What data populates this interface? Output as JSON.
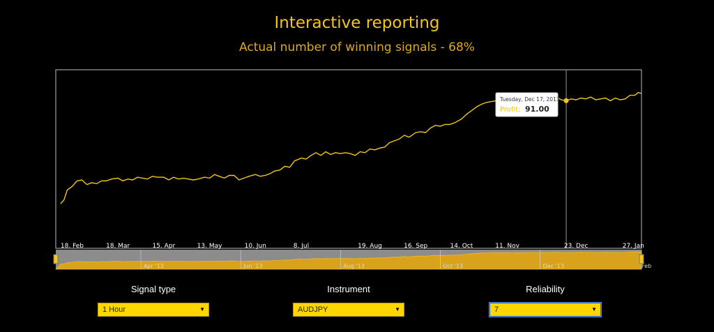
{
  "header": {
    "title": "Interactive reporting",
    "subtitle": "Actual number of winning signals - 68%"
  },
  "chart_data": {
    "type": "line",
    "series": [
      {
        "name": "Profit",
        "points": [
          [
            "2013-02-11",
            34.5
          ],
          [
            "2013-02-13",
            36.5
          ],
          [
            "2013-02-15",
            42
          ],
          [
            "2013-02-18",
            44
          ],
          [
            "2013-02-21",
            47
          ],
          [
            "2013-02-24",
            47.5
          ],
          [
            "2013-02-27",
            45
          ],
          [
            "2013-03-02",
            46
          ],
          [
            "2013-03-05",
            45.5
          ],
          [
            "2013-03-08",
            47
          ],
          [
            "2013-03-11",
            47
          ],
          [
            "2013-03-14",
            48
          ],
          [
            "2013-03-18",
            48.5
          ],
          [
            "2013-03-21",
            47
          ],
          [
            "2013-03-24",
            48
          ],
          [
            "2013-03-27",
            47.5
          ],
          [
            "2013-03-30",
            49
          ],
          [
            "2013-04-02",
            48.5
          ],
          [
            "2013-04-05",
            48
          ],
          [
            "2013-04-08",
            49.5
          ],
          [
            "2013-04-11",
            49
          ],
          [
            "2013-04-15",
            49
          ],
          [
            "2013-04-18",
            47.5
          ],
          [
            "2013-04-21",
            49
          ],
          [
            "2013-04-24",
            48
          ],
          [
            "2013-04-27",
            48.5
          ],
          [
            "2013-04-30",
            48
          ],
          [
            "2013-05-03",
            47.5
          ],
          [
            "2013-05-06",
            48
          ],
          [
            "2013-05-10",
            49
          ],
          [
            "2013-05-13",
            48.5
          ],
          [
            "2013-05-16",
            50.5
          ],
          [
            "2013-05-19",
            49.5
          ],
          [
            "2013-05-22",
            48.5
          ],
          [
            "2013-05-25",
            50
          ],
          [
            "2013-05-28",
            50
          ],
          [
            "2013-05-31",
            47.5
          ],
          [
            "2013-06-03",
            48.5
          ],
          [
            "2013-06-06",
            49.5
          ],
          [
            "2013-06-10",
            50.5
          ],
          [
            "2013-06-13",
            49.5
          ],
          [
            "2013-06-16",
            50
          ],
          [
            "2013-06-19",
            51
          ],
          [
            "2013-06-22",
            52.5
          ],
          [
            "2013-06-25",
            53
          ],
          [
            "2013-06-28",
            55
          ],
          [
            "2013-07-01",
            54.5
          ],
          [
            "2013-07-04",
            58
          ],
          [
            "2013-07-08",
            59.5
          ],
          [
            "2013-07-11",
            59
          ],
          [
            "2013-07-14",
            61
          ],
          [
            "2013-07-17",
            62.5
          ],
          [
            "2013-07-20",
            61
          ],
          [
            "2013-07-23",
            63
          ],
          [
            "2013-07-26",
            61.5
          ],
          [
            "2013-07-29",
            62.5
          ],
          [
            "2013-08-01",
            62
          ],
          [
            "2013-08-04",
            62.5
          ],
          [
            "2013-08-07",
            62
          ],
          [
            "2013-08-10",
            61
          ],
          [
            "2013-08-13",
            63
          ],
          [
            "2013-08-16",
            62.5
          ],
          [
            "2013-08-19",
            64.5
          ],
          [
            "2013-08-22",
            64
          ],
          [
            "2013-08-25",
            65
          ],
          [
            "2013-08-28",
            65.5
          ],
          [
            "2013-08-31",
            68
          ],
          [
            "2013-09-03",
            69
          ],
          [
            "2013-09-06",
            70
          ],
          [
            "2013-09-09",
            72
          ],
          [
            "2013-09-12",
            71
          ],
          [
            "2013-09-16",
            73.5
          ],
          [
            "2013-09-19",
            74
          ],
          [
            "2013-09-22",
            73.5
          ],
          [
            "2013-09-25",
            76
          ],
          [
            "2013-09-28",
            77.5
          ],
          [
            "2013-10-01",
            77
          ],
          [
            "2013-10-04",
            78
          ],
          [
            "2013-10-07",
            78
          ],
          [
            "2013-10-10",
            79
          ],
          [
            "2013-10-14",
            81
          ],
          [
            "2013-10-17",
            83.5
          ],
          [
            "2013-10-20",
            85.5
          ],
          [
            "2013-10-23",
            87.5
          ],
          [
            "2013-10-26",
            89
          ],
          [
            "2013-10-29",
            90
          ],
          [
            "2013-11-01",
            90.5
          ],
          [
            "2013-11-04",
            91
          ],
          [
            "2013-11-07",
            90.5
          ],
          [
            "2013-11-11",
            91
          ],
          [
            "2013-11-14",
            90
          ],
          [
            "2013-11-17",
            91
          ],
          [
            "2013-11-20",
            90.5
          ],
          [
            "2013-11-23",
            92
          ],
          [
            "2013-11-26",
            91.5
          ],
          [
            "2013-11-29",
            91
          ],
          [
            "2013-12-02",
            92
          ],
          [
            "2013-12-05",
            91
          ],
          [
            "2013-12-08",
            92
          ],
          [
            "2013-12-11",
            93
          ],
          [
            "2013-12-14",
            91.5
          ],
          [
            "2013-12-17",
            91
          ],
          [
            "2013-12-20",
            92
          ],
          [
            "2013-12-23",
            91.5
          ],
          [
            "2013-12-26",
            92.5
          ],
          [
            "2013-12-29",
            92
          ],
          [
            "2014-01-01",
            93
          ],
          [
            "2014-01-04",
            91.5
          ],
          [
            "2014-01-07",
            92
          ],
          [
            "2014-01-10",
            92.5
          ],
          [
            "2014-01-13",
            91
          ],
          [
            "2014-01-16",
            92.5
          ],
          [
            "2014-01-19",
            91.5
          ],
          [
            "2014-01-22",
            92
          ],
          [
            "2014-01-25",
            94
          ],
          [
            "2014-01-28",
            94
          ],
          [
            "2014-01-30",
            95.5
          ],
          [
            "2014-02-01",
            95
          ]
        ]
      }
    ],
    "x_tick_labels": [
      [
        "2013-02-18",
        "18. Feb"
      ],
      [
        "2013-03-18",
        "18. Mar"
      ],
      [
        "2013-04-15",
        "15. Apr"
      ],
      [
        "2013-05-13",
        "13. May"
      ],
      [
        "2013-06-10",
        "10. Jun"
      ],
      [
        "2013-07-08",
        "8. Jul"
      ],
      [
        "2013-08-19",
        "19. Aug"
      ],
      [
        "2013-09-16",
        "16. Sep"
      ],
      [
        "2013-10-14",
        "14. Oct"
      ],
      [
        "2013-11-11",
        "11. Nov"
      ],
      [
        "2013-12-23",
        "23. Dec"
      ],
      [
        "2014-01-27",
        "27. Jan"
      ]
    ],
    "navigator_labels": [
      [
        "2013-04-01",
        "Apr '13"
      ],
      [
        "2013-06-01",
        "Jun '13"
      ],
      [
        "2013-08-01",
        "Aug '13"
      ],
      [
        "2013-10-01",
        "Oct '13"
      ],
      [
        "2013-12-01",
        "Dec '13"
      ],
      [
        "2014-02-01",
        "Feb"
      ]
    ],
    "x_range": [
      "2013-02-08",
      "2014-02-01"
    ],
    "ylim": [
      10,
      108
    ],
    "grid": false,
    "legend": "none",
    "tooltip": {
      "date": "2013-12-17",
      "label": "Tuesday, Dec 17, 2013",
      "series": "Profit",
      "value": "91.00"
    },
    "colors": {
      "line": "#f5c518",
      "navigator_fill": "#d9a21b",
      "navigator_bg": "#8c8c8c",
      "tooltip_label": "#f5c518"
    }
  },
  "controls": {
    "signal_type": {
      "label": "Signal type",
      "value": "1 Hour"
    },
    "instrument": {
      "label": "Instrument",
      "value": "AUDJPY"
    },
    "reliability": {
      "label": "Reliability",
      "value": "7"
    }
  }
}
